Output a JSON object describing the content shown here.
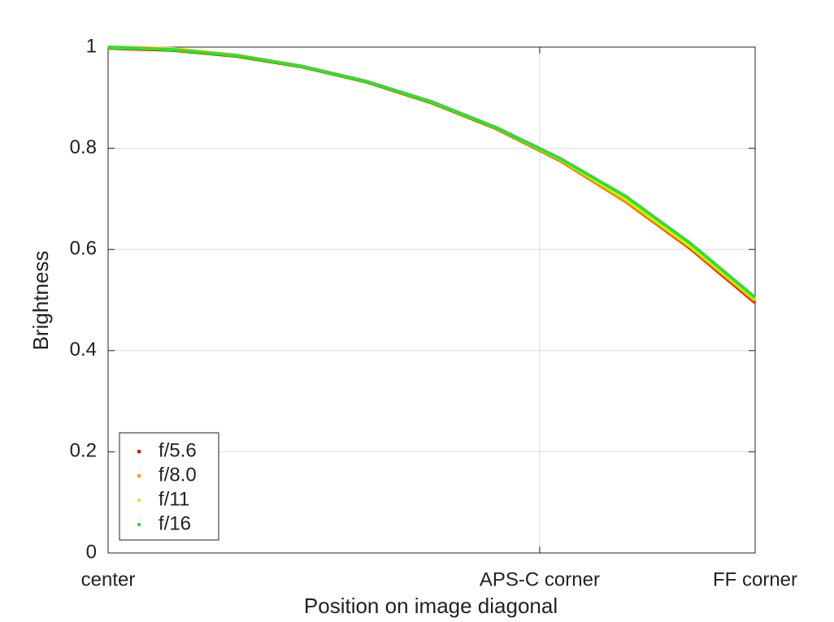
{
  "chart_data": {
    "type": "line",
    "xlabel": "Position on image diagonal",
    "ylabel": "Brightness",
    "x": [
      0,
      0.1,
      0.2,
      0.3,
      0.4,
      0.5,
      0.6,
      0.7,
      0.8,
      0.9,
      1.0
    ],
    "series": [
      {
        "name": "f/5.6",
        "color": "#e00000",
        "values": [
          0.998,
          0.994,
          0.982,
          0.961,
          0.931,
          0.89,
          0.839,
          0.775,
          0.695,
          0.602,
          0.495
        ]
      },
      {
        "name": "f/8.0",
        "color": "#f0a000",
        "values": [
          0.999,
          0.996,
          0.984,
          0.962,
          0.932,
          0.891,
          0.84,
          0.776,
          0.696,
          0.604,
          0.498
        ]
      },
      {
        "name": "f/11",
        "color": "#e8e800",
        "values": [
          1.0,
          0.997,
          0.984,
          0.962,
          0.932,
          0.892,
          0.841,
          0.778,
          0.7,
          0.607,
          0.502
        ]
      },
      {
        "name": "f/16",
        "color": "#30e030",
        "values": [
          1.0,
          0.995,
          0.983,
          0.962,
          0.932,
          0.892,
          0.841,
          0.779,
          0.705,
          0.612,
          0.505
        ]
      }
    ],
    "xlim": [
      0,
      1
    ],
    "xticks": [
      {
        "value": 0,
        "label": "center"
      },
      {
        "value": 0.667,
        "label": "APS-C corner"
      },
      {
        "value": 1,
        "label": "FF corner"
      }
    ],
    "ylim": [
      0,
      1
    ],
    "yticks": [
      0,
      0.2,
      0.4,
      0.6,
      0.8,
      1
    ],
    "grid": true,
    "legend": "lower-left"
  }
}
